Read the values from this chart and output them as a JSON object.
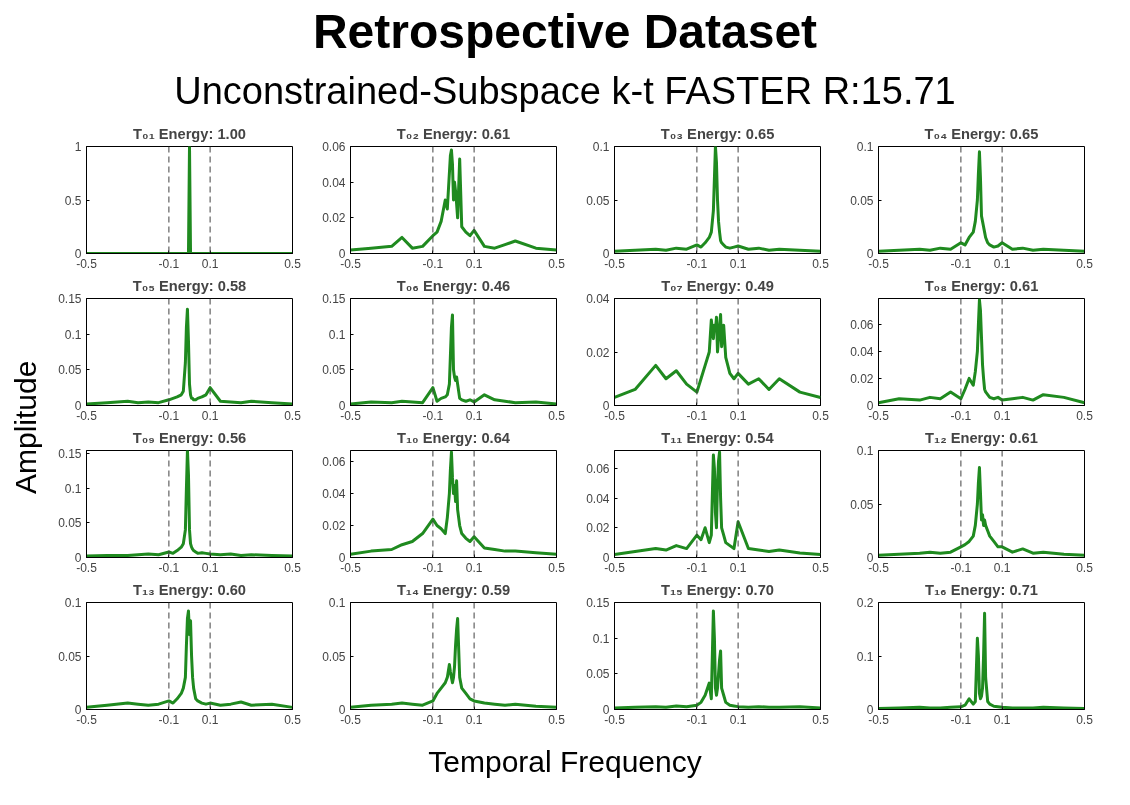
{
  "chart_data": [
    {
      "type": "other",
      "title": "Retrospective Dataset",
      "subtitle": "Unconstrained-Subspace k-t FASTER R:15.71",
      "xlabel": "Temporal Frequency",
      "ylabel": "Amplitude"
    },
    {
      "type": "line",
      "title": "T₀₁ Energy: 1.00",
      "xlim": [
        -0.5,
        0.5
      ],
      "xticks": [
        -0.5,
        -0.1,
        0.1,
        0.5
      ],
      "ylim": [
        0,
        1
      ],
      "yticks": [
        0,
        0.5,
        1
      ],
      "ref_lines": [
        {
          "axis": "x",
          "value": -0.1,
          "line_style": "dashed",
          "color": "#404040"
        },
        {
          "axis": "x",
          "value": 0.1,
          "line_style": "dashed",
          "color": "#404040"
        }
      ],
      "x": [
        -0.5,
        -0.4,
        -0.3,
        -0.25,
        -0.2,
        -0.15,
        -0.1,
        -0.08,
        -0.06,
        -0.04,
        -0.03,
        -0.02,
        -0.015,
        -0.01,
        -0.005,
        0,
        0.005,
        0.01,
        0.015,
        0.02,
        0.03,
        0.04,
        0.06,
        0.08,
        0.1,
        0.15,
        0.2,
        0.25,
        0.3,
        0.4,
        0.5
      ],
      "series": [
        {
          "color": "#1f8a1f",
          "values": [
            0,
            0,
            0,
            0,
            0,
            0,
            0,
            0,
            0,
            0,
            0,
            0,
            0,
            0,
            0,
            1,
            0,
            0,
            0,
            0,
            0,
            0,
            0,
            0,
            0,
            0,
            0,
            0,
            0,
            0,
            0
          ]
        }
      ]
    },
    {
      "type": "line",
      "title": "T₀₂ Energy: 0.61",
      "xlim": [
        -0.5,
        0.5
      ],
      "xticks": [
        -0.5,
        -0.1,
        0.1,
        0.5
      ],
      "ylim": [
        0,
        0.06
      ],
      "yticks": [
        0,
        0.02,
        0.04,
        0.06
      ],
      "ref_lines": [
        {
          "axis": "x",
          "value": -0.1,
          "line_style": "dashed",
          "color": "#404040"
        },
        {
          "axis": "x",
          "value": 0.1,
          "line_style": "dashed",
          "color": "#404040"
        }
      ],
      "x": [
        -0.5,
        -0.4,
        -0.3,
        -0.25,
        -0.2,
        -0.15,
        -0.1,
        -0.08,
        -0.06,
        -0.04,
        -0.03,
        -0.02,
        -0.015,
        -0.01,
        -0.005,
        0,
        0.005,
        0.01,
        0.015,
        0.02,
        0.03,
        0.04,
        0.06,
        0.08,
        0.1,
        0.15,
        0.2,
        0.25,
        0.3,
        0.4,
        0.5
      ],
      "series": [
        {
          "color": "#1f8a1f",
          "values": [
            0.002,
            0.003,
            0.004,
            0.009,
            0.003,
            0.004,
            0.01,
            0.012,
            0.018,
            0.03,
            0.025,
            0.045,
            0.055,
            0.058,
            0.05,
            0.03,
            0.04,
            0.035,
            0.028,
            0.02,
            0.053,
            0.015,
            0.012,
            0.01,
            0.013,
            0.004,
            0.003,
            0.005,
            0.007,
            0.003,
            0.002
          ]
        }
      ]
    },
    {
      "type": "line",
      "title": "T₀₃ Energy: 0.65",
      "xlim": [
        -0.5,
        0.5
      ],
      "xticks": [
        -0.5,
        -0.1,
        0.1,
        0.5
      ],
      "ylim": [
        0,
        0.1
      ],
      "yticks": [
        0,
        0.05,
        0.1
      ],
      "ref_lines": [
        {
          "axis": "x",
          "value": -0.1,
          "line_style": "dashed",
          "color": "#404040"
        },
        {
          "axis": "x",
          "value": 0.1,
          "line_style": "dashed",
          "color": "#404040"
        }
      ],
      "x": [
        -0.5,
        -0.4,
        -0.3,
        -0.25,
        -0.2,
        -0.15,
        -0.1,
        -0.08,
        -0.06,
        -0.04,
        -0.03,
        -0.02,
        -0.015,
        -0.01,
        -0.005,
        0,
        0.005,
        0.01,
        0.015,
        0.02,
        0.03,
        0.04,
        0.06,
        0.08,
        0.1,
        0.15,
        0.2,
        0.25,
        0.3,
        0.4,
        0.5
      ],
      "series": [
        {
          "color": "#1f8a1f",
          "values": [
            0.002,
            0.003,
            0.004,
            0.003,
            0.005,
            0.004,
            0.008,
            0.006,
            0.01,
            0.015,
            0.02,
            0.04,
            0.07,
            0.1,
            0.085,
            0.05,
            0.03,
            0.02,
            0.012,
            0.01,
            0.008,
            0.006,
            0.005,
            0.006,
            0.007,
            0.004,
            0.005,
            0.003,
            0.004,
            0.003,
            0.002
          ]
        }
      ]
    },
    {
      "type": "line",
      "title": "T₀₄ Energy: 0.65",
      "xlim": [
        -0.5,
        0.5
      ],
      "xticks": [
        -0.5,
        -0.1,
        0.1,
        0.5
      ],
      "ylim": [
        0,
        0.1
      ],
      "yticks": [
        0,
        0.05,
        0.1
      ],
      "ref_lines": [
        {
          "axis": "x",
          "value": -0.1,
          "line_style": "dashed",
          "color": "#404040"
        },
        {
          "axis": "x",
          "value": 0.1,
          "line_style": "dashed",
          "color": "#404040"
        }
      ],
      "x": [
        -0.5,
        -0.4,
        -0.3,
        -0.25,
        -0.2,
        -0.15,
        -0.1,
        -0.08,
        -0.06,
        -0.04,
        -0.03,
        -0.02,
        -0.015,
        -0.01,
        -0.005,
        0,
        0.005,
        0.01,
        0.015,
        0.02,
        0.03,
        0.04,
        0.06,
        0.08,
        0.1,
        0.15,
        0.2,
        0.25,
        0.3,
        0.4,
        0.5
      ],
      "series": [
        {
          "color": "#1f8a1f",
          "values": [
            0.002,
            0.003,
            0.004,
            0.003,
            0.005,
            0.004,
            0.01,
            0.008,
            0.015,
            0.02,
            0.03,
            0.05,
            0.075,
            0.095,
            0.07,
            0.035,
            0.03,
            0.025,
            0.02,
            0.015,
            0.01,
            0.008,
            0.006,
            0.007,
            0.01,
            0.004,
            0.005,
            0.003,
            0.004,
            0.003,
            0.002
          ]
        }
      ]
    },
    {
      "type": "line",
      "title": "T₀₅ Energy: 0.58",
      "xlim": [
        -0.5,
        0.5
      ],
      "xticks": [
        -0.5,
        -0.1,
        0.1,
        0.5
      ],
      "ylim": [
        0,
        0.15
      ],
      "yticks": [
        0,
        0.05,
        0.1,
        0.15
      ],
      "ref_lines": [
        {
          "axis": "x",
          "value": -0.1,
          "line_style": "dashed",
          "color": "#404040"
        },
        {
          "axis": "x",
          "value": 0.1,
          "line_style": "dashed",
          "color": "#404040"
        }
      ],
      "x": [
        -0.5,
        -0.4,
        -0.3,
        -0.25,
        -0.2,
        -0.15,
        -0.1,
        -0.08,
        -0.06,
        -0.04,
        -0.03,
        -0.02,
        -0.015,
        -0.01,
        -0.005,
        0,
        0.005,
        0.01,
        0.015,
        0.02,
        0.03,
        0.04,
        0.06,
        0.08,
        0.1,
        0.15,
        0.2,
        0.25,
        0.3,
        0.4,
        0.5
      ],
      "series": [
        {
          "color": "#1f8a1f",
          "values": [
            0.002,
            0.004,
            0.006,
            0.004,
            0.005,
            0.004,
            0.008,
            0.01,
            0.012,
            0.015,
            0.02,
            0.06,
            0.11,
            0.135,
            0.09,
            0.03,
            0.015,
            0.01,
            0.01,
            0.008,
            0.008,
            0.01,
            0.012,
            0.015,
            0.025,
            0.006,
            0.005,
            0.004,
            0.006,
            0.004,
            0.002
          ]
        }
      ]
    },
    {
      "type": "line",
      "title": "T₀₆ Energy: 0.46",
      "xlim": [
        -0.5,
        0.5
      ],
      "xticks": [
        -0.5,
        -0.1,
        0.1,
        0.5
      ],
      "ylim": [
        0,
        0.15
      ],
      "yticks": [
        0,
        0.05,
        0.1,
        0.15
      ],
      "ref_lines": [
        {
          "axis": "x",
          "value": -0.1,
          "line_style": "dashed",
          "color": "#404040"
        },
        {
          "axis": "x",
          "value": 0.1,
          "line_style": "dashed",
          "color": "#404040"
        }
      ],
      "x": [
        -0.5,
        -0.4,
        -0.3,
        -0.25,
        -0.2,
        -0.15,
        -0.1,
        -0.08,
        -0.06,
        -0.04,
        -0.03,
        -0.02,
        -0.015,
        -0.01,
        -0.005,
        0,
        0.005,
        0.01,
        0.015,
        0.02,
        0.03,
        0.04,
        0.06,
        0.08,
        0.1,
        0.15,
        0.2,
        0.25,
        0.3,
        0.4,
        0.5
      ],
      "series": [
        {
          "color": "#1f8a1f",
          "values": [
            0.002,
            0.005,
            0.004,
            0.006,
            0.005,
            0.004,
            0.025,
            0.006,
            0.01,
            0.012,
            0.015,
            0.03,
            0.07,
            0.11,
            0.127,
            0.05,
            0.04,
            0.035,
            0.04,
            0.03,
            0.01,
            0.008,
            0.006,
            0.008,
            0.005,
            0.015,
            0.008,
            0.006,
            0.004,
            0.005,
            0.002
          ]
        }
      ]
    },
    {
      "type": "line",
      "title": "T₀₇ Energy: 0.49",
      "xlim": [
        -0.5,
        0.5
      ],
      "xticks": [
        -0.5,
        -0.1,
        0.1,
        0.5
      ],
      "ylim": [
        0,
        0.04
      ],
      "yticks": [
        0,
        0.02,
        0.04
      ],
      "ref_lines": [
        {
          "axis": "x",
          "value": -0.1,
          "line_style": "dashed",
          "color": "#404040"
        },
        {
          "axis": "x",
          "value": 0.1,
          "line_style": "dashed",
          "color": "#404040"
        }
      ],
      "x": [
        -0.5,
        -0.4,
        -0.3,
        -0.25,
        -0.2,
        -0.15,
        -0.1,
        -0.08,
        -0.06,
        -0.04,
        -0.03,
        -0.02,
        -0.015,
        -0.01,
        -0.005,
        0,
        0.005,
        0.01,
        0.015,
        0.02,
        0.03,
        0.04,
        0.06,
        0.08,
        0.1,
        0.15,
        0.2,
        0.25,
        0.3,
        0.4,
        0.5
      ],
      "series": [
        {
          "color": "#1f8a1f",
          "values": [
            0.003,
            0.006,
            0.015,
            0.01,
            0.013,
            0.008,
            0.005,
            0.01,
            0.015,
            0.02,
            0.032,
            0.025,
            0.03,
            0.028,
            0.033,
            0.02,
            0.025,
            0.03,
            0.034,
            0.022,
            0.03,
            0.018,
            0.012,
            0.01,
            0.012,
            0.008,
            0.01,
            0.006,
            0.01,
            0.005,
            0.003
          ]
        }
      ]
    },
    {
      "type": "line",
      "title": "T₀₈ Energy: 0.61",
      "xlim": [
        -0.5,
        0.5
      ],
      "xticks": [
        -0.5,
        -0.1,
        0.1,
        0.5
      ],
      "ylim": [
        0,
        0.079
      ],
      "yticks": [
        0,
        0.02,
        0.04,
        0.06
      ],
      "ref_lines": [
        {
          "axis": "x",
          "value": -0.1,
          "line_style": "dashed",
          "color": "#404040"
        },
        {
          "axis": "x",
          "value": 0.1,
          "line_style": "dashed",
          "color": "#404040"
        }
      ],
      "x": [
        -0.5,
        -0.4,
        -0.3,
        -0.25,
        -0.2,
        -0.15,
        -0.1,
        -0.08,
        -0.06,
        -0.04,
        -0.03,
        -0.02,
        -0.015,
        -0.01,
        -0.005,
        0,
        0.005,
        0.01,
        0.015,
        0.02,
        0.03,
        0.04,
        0.06,
        0.08,
        0.1,
        0.15,
        0.2,
        0.25,
        0.3,
        0.4,
        0.5
      ],
      "series": [
        {
          "color": "#1f8a1f",
          "values": [
            0.002,
            0.005,
            0.004,
            0.006,
            0.005,
            0.01,
            0.005,
            0.012,
            0.02,
            0.015,
            0.025,
            0.04,
            0.06,
            0.078,
            0.07,
            0.05,
            0.03,
            0.02,
            0.012,
            0.01,
            0.008,
            0.006,
            0.005,
            0.006,
            0.004,
            0.005,
            0.006,
            0.004,
            0.008,
            0.006,
            0.002
          ]
        }
      ]
    },
    {
      "type": "line",
      "title": "T₀₉ Energy: 0.56",
      "xlim": [
        -0.5,
        0.5
      ],
      "xticks": [
        -0.5,
        -0.1,
        0.1,
        0.5
      ],
      "ylim": [
        0,
        0.155
      ],
      "yticks": [
        0,
        0.05,
        0.1,
        0.15
      ],
      "ref_lines": [
        {
          "axis": "x",
          "value": -0.1,
          "line_style": "dashed",
          "color": "#404040"
        },
        {
          "axis": "x",
          "value": 0.1,
          "line_style": "dashed",
          "color": "#404040"
        }
      ],
      "x": [
        -0.5,
        -0.4,
        -0.3,
        -0.25,
        -0.2,
        -0.15,
        -0.1,
        -0.08,
        -0.06,
        -0.04,
        -0.03,
        -0.02,
        -0.015,
        -0.01,
        -0.005,
        0,
        0.005,
        0.01,
        0.015,
        0.02,
        0.03,
        0.04,
        0.06,
        0.08,
        0.1,
        0.15,
        0.2,
        0.25,
        0.3,
        0.4,
        0.5
      ],
      "series": [
        {
          "color": "#1f8a1f",
          "values": [
            0.002,
            0.003,
            0.003,
            0.004,
            0.005,
            0.004,
            0.008,
            0.006,
            0.01,
            0.015,
            0.02,
            0.04,
            0.1,
            0.155,
            0.12,
            0.04,
            0.02,
            0.015,
            0.012,
            0.01,
            0.008,
            0.006,
            0.007,
            0.006,
            0.005,
            0.004,
            0.005,
            0.003,
            0.004,
            0.003,
            0.002
          ]
        }
      ]
    },
    {
      "type": "line",
      "title": "T₁₀ Energy: 0.64",
      "xlim": [
        -0.5,
        0.5
      ],
      "xticks": [
        -0.5,
        -0.1,
        0.1,
        0.5
      ],
      "ylim": [
        0,
        0.067
      ],
      "yticks": [
        0,
        0.02,
        0.04,
        0.06
      ],
      "ref_lines": [
        {
          "axis": "x",
          "value": -0.1,
          "line_style": "dashed",
          "color": "#404040"
        },
        {
          "axis": "x",
          "value": 0.1,
          "line_style": "dashed",
          "color": "#404040"
        }
      ],
      "x": [
        -0.5,
        -0.4,
        -0.3,
        -0.25,
        -0.2,
        -0.15,
        -0.1,
        -0.08,
        -0.06,
        -0.04,
        -0.03,
        -0.02,
        -0.015,
        -0.01,
        -0.005,
        0,
        0.005,
        0.01,
        0.015,
        0.02,
        0.03,
        0.04,
        0.06,
        0.08,
        0.1,
        0.15,
        0.2,
        0.25,
        0.3,
        0.4,
        0.5
      ],
      "series": [
        {
          "color": "#1f8a1f",
          "values": [
            0.002,
            0.004,
            0.005,
            0.008,
            0.01,
            0.015,
            0.024,
            0.02,
            0.018,
            0.015,
            0.025,
            0.04,
            0.055,
            0.066,
            0.05,
            0.04,
            0.045,
            0.035,
            0.048,
            0.03,
            0.02,
            0.015,
            0.012,
            0.01,
            0.013,
            0.006,
            0.005,
            0.004,
            0.004,
            0.003,
            0.002
          ]
        }
      ]
    },
    {
      "type": "line",
      "title": "T₁₁ Energy: 0.54",
      "xlim": [
        -0.5,
        0.5
      ],
      "xticks": [
        -0.5,
        -0.1,
        0.1,
        0.5
      ],
      "ylim": [
        0,
        0.072
      ],
      "yticks": [
        0,
        0.02,
        0.04,
        0.06
      ],
      "ref_lines": [
        {
          "axis": "x",
          "value": -0.1,
          "line_style": "dashed",
          "color": "#404040"
        },
        {
          "axis": "x",
          "value": 0.1,
          "line_style": "dashed",
          "color": "#404040"
        }
      ],
      "x": [
        -0.5,
        -0.4,
        -0.3,
        -0.25,
        -0.2,
        -0.15,
        -0.1,
        -0.08,
        -0.06,
        -0.04,
        -0.03,
        -0.02,
        -0.015,
        -0.01,
        -0.005,
        0,
        0.005,
        0.01,
        0.015,
        0.02,
        0.03,
        0.04,
        0.06,
        0.08,
        0.1,
        0.15,
        0.2,
        0.25,
        0.3,
        0.4,
        0.5
      ],
      "series": [
        {
          "color": "#1f8a1f",
          "values": [
            0.002,
            0.004,
            0.006,
            0.005,
            0.008,
            0.006,
            0.015,
            0.012,
            0.02,
            0.01,
            0.015,
            0.069,
            0.06,
            0.03,
            0.02,
            0.05,
            0.065,
            0.071,
            0.04,
            0.02,
            0.015,
            0.01,
            0.008,
            0.006,
            0.024,
            0.006,
            0.005,
            0.004,
            0.005,
            0.003,
            0.002
          ]
        }
      ]
    },
    {
      "type": "line",
      "title": "T₁₂ Energy: 0.61",
      "xlim": [
        -0.5,
        0.5
      ],
      "xticks": [
        -0.5,
        -0.1,
        0.1,
        0.5
      ],
      "ylim": [
        0,
        0.1
      ],
      "yticks": [
        0,
        0.05,
        0.1
      ],
      "ref_lines": [
        {
          "axis": "x",
          "value": -0.1,
          "line_style": "dashed",
          "color": "#404040"
        },
        {
          "axis": "x",
          "value": 0.1,
          "line_style": "dashed",
          "color": "#404040"
        }
      ],
      "x": [
        -0.5,
        -0.4,
        -0.3,
        -0.25,
        -0.2,
        -0.15,
        -0.1,
        -0.08,
        -0.06,
        -0.04,
        -0.03,
        -0.02,
        -0.015,
        -0.01,
        -0.005,
        0,
        0.005,
        0.01,
        0.015,
        0.02,
        0.03,
        0.04,
        0.06,
        0.08,
        0.1,
        0.15,
        0.2,
        0.25,
        0.3,
        0.4,
        0.5
      ],
      "series": [
        {
          "color": "#1f8a1f",
          "values": [
            0.002,
            0.003,
            0.004,
            0.005,
            0.004,
            0.005,
            0.01,
            0.012,
            0.015,
            0.02,
            0.03,
            0.05,
            0.07,
            0.084,
            0.06,
            0.035,
            0.04,
            0.03,
            0.035,
            0.03,
            0.025,
            0.02,
            0.015,
            0.01,
            0.01,
            0.005,
            0.008,
            0.004,
            0.005,
            0.003,
            0.002
          ]
        }
      ]
    },
    {
      "type": "line",
      "title": "T₁₃ Energy: 0.60",
      "xlim": [
        -0.5,
        0.5
      ],
      "xticks": [
        -0.5,
        -0.1,
        0.1,
        0.5
      ],
      "ylim": [
        0,
        0.1
      ],
      "yticks": [
        0,
        0.05,
        0.1
      ],
      "ref_lines": [
        {
          "axis": "x",
          "value": -0.1,
          "line_style": "dashed",
          "color": "#404040"
        },
        {
          "axis": "x",
          "value": 0.1,
          "line_style": "dashed",
          "color": "#404040"
        }
      ],
      "x": [
        -0.5,
        -0.4,
        -0.3,
        -0.25,
        -0.2,
        -0.15,
        -0.1,
        -0.08,
        -0.06,
        -0.04,
        -0.03,
        -0.02,
        -0.015,
        -0.01,
        -0.005,
        0,
        0.005,
        0.01,
        0.015,
        0.02,
        0.03,
        0.04,
        0.06,
        0.08,
        0.1,
        0.15,
        0.2,
        0.25,
        0.3,
        0.4,
        0.5
      ],
      "series": [
        {
          "color": "#1f8a1f",
          "values": [
            0.002,
            0.004,
            0.006,
            0.005,
            0.004,
            0.005,
            0.008,
            0.006,
            0.01,
            0.015,
            0.02,
            0.03,
            0.06,
            0.085,
            0.092,
            0.07,
            0.083,
            0.05,
            0.03,
            0.02,
            0.01,
            0.008,
            0.006,
            0.005,
            0.006,
            0.004,
            0.005,
            0.007,
            0.004,
            0.005,
            0.002
          ]
        }
      ]
    },
    {
      "type": "line",
      "title": "T₁₄ Energy: 0.59",
      "xlim": [
        -0.5,
        0.5
      ],
      "xticks": [
        -0.5,
        -0.1,
        0.1,
        0.5
      ],
      "ylim": [
        0,
        0.1
      ],
      "yticks": [
        0,
        0.05,
        0.1
      ],
      "ref_lines": [
        {
          "axis": "x",
          "value": -0.1,
          "line_style": "dashed",
          "color": "#404040"
        },
        {
          "axis": "x",
          "value": 0.1,
          "line_style": "dashed",
          "color": "#404040"
        }
      ],
      "x": [
        -0.5,
        -0.4,
        -0.3,
        -0.25,
        -0.2,
        -0.15,
        -0.1,
        -0.08,
        -0.06,
        -0.04,
        -0.03,
        -0.02,
        -0.015,
        -0.01,
        -0.005,
        0,
        0.005,
        0.01,
        0.015,
        0.02,
        0.03,
        0.04,
        0.06,
        0.08,
        0.1,
        0.15,
        0.2,
        0.25,
        0.3,
        0.4,
        0.5
      ],
      "series": [
        {
          "color": "#1f8a1f",
          "values": [
            0.002,
            0.004,
            0.005,
            0.006,
            0.005,
            0.004,
            0.008,
            0.015,
            0.02,
            0.025,
            0.03,
            0.042,
            0.035,
            0.03,
            0.025,
            0.03,
            0.04,
            0.06,
            0.075,
            0.085,
            0.03,
            0.02,
            0.015,
            0.01,
            0.008,
            0.006,
            0.005,
            0.004,
            0.005,
            0.003,
            0.002
          ]
        }
      ]
    },
    {
      "type": "line",
      "title": "T₁₅ Energy: 0.70",
      "xlim": [
        -0.5,
        0.5
      ],
      "xticks": [
        -0.5,
        -0.1,
        0.1,
        0.5
      ],
      "ylim": [
        0,
        0.15
      ],
      "yticks": [
        0,
        0.05,
        0.1,
        0.15
      ],
      "ref_lines": [
        {
          "axis": "x",
          "value": -0.1,
          "line_style": "dashed",
          "color": "#404040"
        },
        {
          "axis": "x",
          "value": 0.1,
          "line_style": "dashed",
          "color": "#404040"
        }
      ],
      "x": [
        -0.5,
        -0.4,
        -0.3,
        -0.25,
        -0.2,
        -0.15,
        -0.1,
        -0.08,
        -0.06,
        -0.04,
        -0.03,
        -0.02,
        -0.015,
        -0.01,
        -0.005,
        0,
        0.005,
        0.01,
        0.015,
        0.02,
        0.03,
        0.04,
        0.06,
        0.08,
        0.1,
        0.15,
        0.2,
        0.25,
        0.3,
        0.4,
        0.5
      ],
      "series": [
        {
          "color": "#1f8a1f",
          "values": [
            0.002,
            0.003,
            0.004,
            0.003,
            0.005,
            0.004,
            0.006,
            0.01,
            0.02,
            0.037,
            0.015,
            0.138,
            0.1,
            0.03,
            0.02,
            0.03,
            0.05,
            0.07,
            0.082,
            0.03,
            0.02,
            0.01,
            0.006,
            0.005,
            0.004,
            0.003,
            0.004,
            0.003,
            0.003,
            0.004,
            0.002
          ]
        }
      ]
    },
    {
      "type": "line",
      "title": "T₁₆ Energy: 0.71",
      "xlim": [
        -0.5,
        0.5
      ],
      "xticks": [
        -0.5,
        -0.1,
        0.1,
        0.5
      ],
      "ylim": [
        0,
        0.2
      ],
      "yticks": [
        0,
        0.1,
        0.2
      ],
      "ref_lines": [
        {
          "axis": "x",
          "value": -0.1,
          "line_style": "dashed",
          "color": "#404040"
        },
        {
          "axis": "x",
          "value": 0.1,
          "line_style": "dashed",
          "color": "#404040"
        }
      ],
      "x": [
        -0.5,
        -0.4,
        -0.3,
        -0.25,
        -0.2,
        -0.15,
        -0.1,
        -0.08,
        -0.06,
        -0.04,
        -0.03,
        -0.02,
        -0.015,
        -0.01,
        -0.005,
        0,
        0.005,
        0.01,
        0.015,
        0.02,
        0.03,
        0.04,
        0.06,
        0.08,
        0.1,
        0.15,
        0.2,
        0.25,
        0.3,
        0.4,
        0.5
      ],
      "series": [
        {
          "color": "#1f8a1f",
          "values": [
            0.002,
            0.003,
            0.004,
            0.003,
            0.003,
            0.004,
            0.005,
            0.008,
            0.02,
            0.01,
            0.015,
            0.133,
            0.1,
            0.03,
            0.02,
            0.025,
            0.04,
            0.1,
            0.18,
            0.06,
            0.015,
            0.01,
            0.006,
            0.005,
            0.004,
            0.003,
            0.003,
            0.003,
            0.004,
            0.003,
            0.002
          ]
        }
      ]
    }
  ]
}
